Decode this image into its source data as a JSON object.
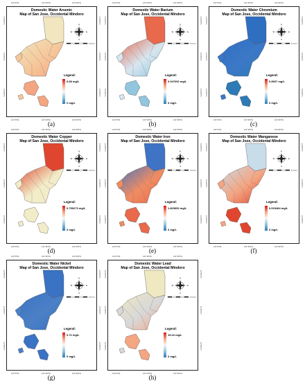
{
  "ticks": {
    "top": [
      "121°0'0\"E",
      "121°10'0\"E",
      "121°20'0\"E"
    ],
    "left": [
      "12°40'0\"N",
      "12°30'0\"N",
      "12°20'0\"N"
    ]
  },
  "compass_letters": {
    "n": "N",
    "s": "S",
    "e": "E",
    "w": "W"
  },
  "scale_label": "Kilometers",
  "legend_title": "Legend:",
  "colors": {
    "high": "#d7191c",
    "mid_high": "#f4a582",
    "mid": "#f7f7f7",
    "mid_low": "#92c5de",
    "low": "#2c7bb6"
  },
  "panels": [
    {
      "id": "a",
      "caption": "(a)",
      "title": [
        "Domestic Water Arsenic",
        "Map of San Jose, Occidental Mindoro"
      ],
      "max": "6.68 mg/L",
      "min": "0 mg/L",
      "north_fill": "#f1e6c0",
      "main_fill": "#f6c79a",
      "south_fill": "#f4a582"
    },
    {
      "id": "b",
      "caption": "(b)",
      "title": [
        "Domestic Water Barium",
        "Map of San Jose, Occidental Mindoro"
      ],
      "max": "0.047692 mg/L",
      "min": "0 mg/L",
      "north_fill": "#e8694c",
      "main_fill": "#d7e6f0",
      "south_fill": "#92c5de"
    },
    {
      "id": "c",
      "caption": "(c)",
      "title": [
        "Domestic Water Chromium",
        "Map of San Jose, Occidental Mindoro"
      ],
      "max": "0.8937 mg/L",
      "min": "0 mg/L",
      "north_fill": "#2f6fc2",
      "main_fill": "#3a78c8",
      "south_fill": "#2c7bb6"
    },
    {
      "id": "d",
      "caption": "(d)",
      "title": [
        "Domestic Water Copper",
        "Map of San Jose, Occidental Mindoro"
      ],
      "max": "0.799273 mg/L",
      "min": "0 mg/L",
      "north_fill": "#e0462f",
      "main_fill": "#f2ecc8",
      "south_fill": "#f2ecc8"
    },
    {
      "id": "e",
      "caption": "(e)",
      "title": [
        "Domestic Water Iron",
        "Map of San Jose, Occidental Mindoro"
      ],
      "max": "1.815652 mg/L",
      "min": "0 mg/L",
      "north_fill": "#3e73c6",
      "main_fill": "#f08c62",
      "south_fill": "#e8694c"
    },
    {
      "id": "f",
      "caption": "(f)",
      "title": [
        "Domestic Water Manganese",
        "Map of San Jose, Occidental Mindoro"
      ],
      "max": "0.015484 mg/L",
      "min": "0 mg/L",
      "north_fill": "#c8dcea",
      "main_fill": "#f4a582",
      "south_fill": "#e0462f"
    },
    {
      "id": "g",
      "caption": "(g)",
      "title": [
        "Domestic Water Nickel",
        "Map of San Jose, Occidental Mindoro"
      ],
      "max": "0.72 mg/L",
      "min": "0 mg/L",
      "north_fill": "#3a73c4",
      "main_fill": "#4a80c8",
      "south_fill": "#3a73c4"
    },
    {
      "id": "h",
      "caption": "(h)",
      "title": [
        "Domestic Water Lead",
        "Map of San Jose, Occidental Mindoro"
      ],
      "max": "15.16 mg/L",
      "min": "0 mg/L",
      "north_fill": "#efe8c0",
      "main_fill": "#d8d8d8",
      "south_fill": "#f4a582"
    }
  ]
}
